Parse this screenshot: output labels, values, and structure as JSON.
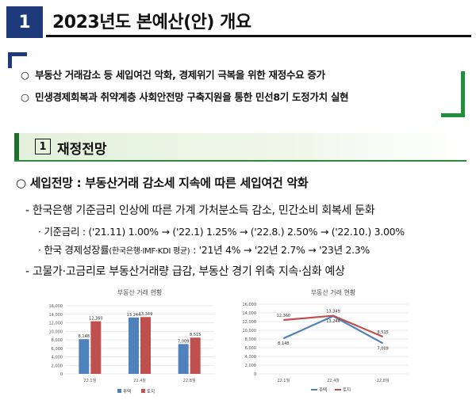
{
  "section": {
    "number": "1",
    "title": "2023년도 본예산(안) 개요"
  },
  "summary": [
    {
      "bullet": "○",
      "text": "부동산 거래감소 등 세입여건 악화, 경제위기 극복을 위한 재정수요 증가"
    },
    {
      "bullet": "○",
      "text": "민생경제회복과 취약계층 사회안전망 구축지원을 통한 민선8기 도정가치 실현"
    }
  ],
  "subsection": {
    "number": "1",
    "title": "재정전망"
  },
  "heading": {
    "bullet": "○",
    "text": "세입전망 : 부동산거래 감소세 지속에 따른 세입여건 악화"
  },
  "bullets": {
    "b1": "- 한국은행 기준금리 인상에 따른 가계 가처분소득 감소, 민간소비 회복세 둔화",
    "b1a": "· 기준금리 : ('21.11) 1.00% → ('22.1) 1.25% → ('22.8.) 2.50% → ('22.10.) 3.00%",
    "b1b_main": "· 한국 경제성장률",
    "b1b_small": "(한국은행·IMF·KDI 평균)",
    "b1b_rest": " : '21년 4% → '22년 2.7% → '23년 2.3%",
    "b2": "- 고물가·고금리로 부동산거래량 급감, 부동산 경기 위축 지속·심화 예상"
  },
  "charts": [
    {
      "type": "bar",
      "title": "부동산 거래 현황",
      "categories": [
        "22.1월",
        "22.4월",
        "22.8월"
      ],
      "series": [
        {
          "name": "주택",
          "values": [
            8148,
            13244,
            7009
          ],
          "labels": [
            "8,148",
            "13,244",
            "7,009"
          ],
          "color": "#4f81bd"
        },
        {
          "name": "토지",
          "values": [
            12360,
            13349,
            8515
          ],
          "labels": [
            "12,360",
            "13,349",
            "8,515"
          ],
          "color": "#c0504d"
        }
      ],
      "ylim": [
        0,
        16000
      ],
      "ticks": [
        "16,000",
        "14,000",
        "12,000",
        "10,000",
        "8,000",
        "6,000",
        "4,000",
        "2,000",
        "0"
      ],
      "legend": "bottom"
    },
    {
      "type": "line",
      "title": "부동산 거래 현황",
      "categories": [
        "22.1월",
        "22.4월",
        "22.8월"
      ],
      "series": [
        {
          "name": "주택",
          "values": [
            8148,
            13244,
            7009
          ],
          "labels": [
            "8,148",
            "13,244",
            "7,009"
          ],
          "color": "#4f81bd"
        },
        {
          "name": "토지",
          "values": [
            12360,
            13349,
            8515
          ],
          "labels": [
            "12,360",
            "13,349",
            "8,515"
          ],
          "color": "#c0504d"
        }
      ],
      "ylim": [
        0,
        16000
      ],
      "ticks": [
        "16,000",
        "14,000",
        "12,000",
        "10,000",
        "8,000",
        "6,000",
        "4,000",
        "2,000",
        "0"
      ],
      "legend": "bottom"
    }
  ]
}
